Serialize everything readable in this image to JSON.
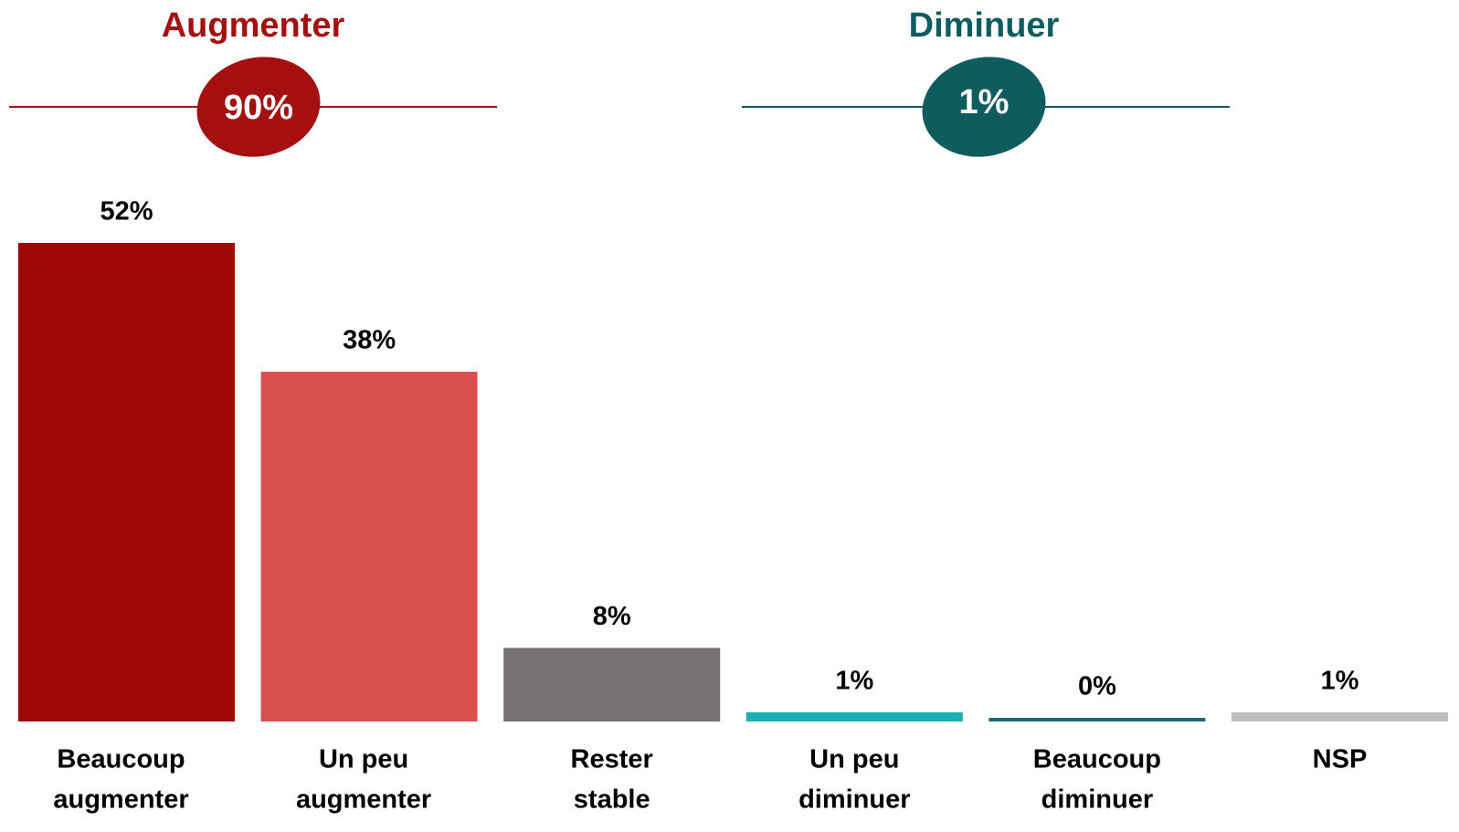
{
  "chart_data": {
    "type": "bar",
    "groups": [
      {
        "title": "Augmenter",
        "value": 90,
        "label": "90%",
        "color": "#a50f0f"
      },
      {
        "title": "Diminuer",
        "value": 1,
        "label": "1%",
        "color": "#0e5c5e"
      }
    ],
    "categories": [
      [
        "Beaucoup",
        "augmenter"
      ],
      [
        "Un peu",
        "augmenter"
      ],
      [
        "Rester",
        "stable"
      ],
      [
        "Un peu",
        "diminuer"
      ],
      [
        "Beaucoup",
        "diminuer"
      ],
      [
        "NSP"
      ]
    ],
    "values": [
      52,
      38,
      8,
      1,
      0,
      1
    ],
    "value_labels": [
      "52%",
      "38%",
      "8%",
      "1%",
      "0%",
      "1%"
    ],
    "colors": [
      "#a00707",
      "#d94f50",
      "#787372",
      "#1bafb1",
      "#1b6a73",
      "#bfbfbf"
    ]
  }
}
